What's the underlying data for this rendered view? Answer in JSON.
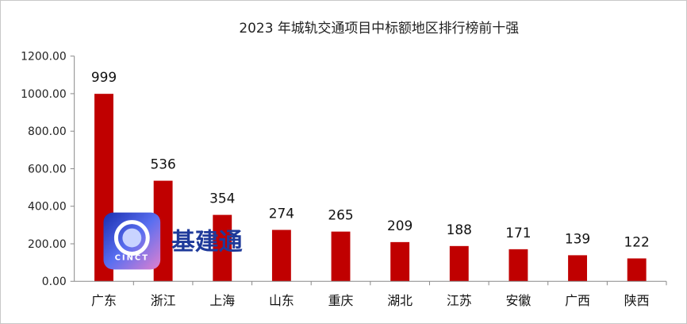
{
  "chart_data": {
    "type": "bar",
    "title": "2023 年城轨交通项目中标额地区排行榜前十强",
    "categories": [
      "广东",
      "浙江",
      "上海",
      "山东",
      "重庆",
      "湖北",
      "江苏",
      "安徽",
      "广西",
      "陕西"
    ],
    "values": [
      999,
      536,
      354,
      274,
      265,
      209,
      188,
      171,
      139,
      122
    ],
    "ylim": [
      0,
      1200
    ],
    "yticks": [
      "0.00",
      "200.00",
      "400.00",
      "600.00",
      "800.00",
      "1000.00",
      "1200.00"
    ],
    "bar_color": "#c00000",
    "grid": false,
    "legend": "none"
  },
  "watermark": {
    "logo_text": "CINCT",
    "brand_text": "基建通"
  }
}
